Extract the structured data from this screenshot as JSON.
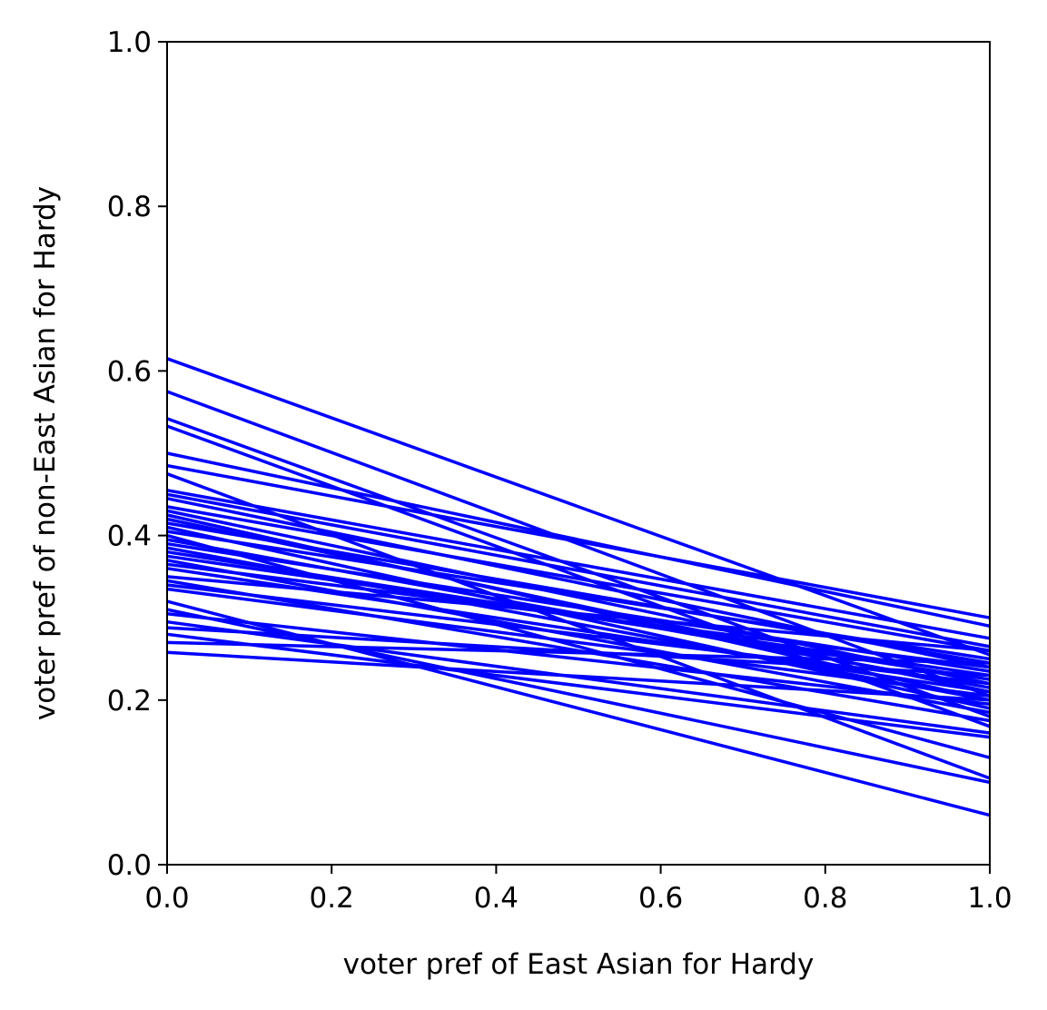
{
  "chart_data": {
    "type": "line",
    "title": "",
    "xlabel": "voter pref of East Asian for Hardy",
    "ylabel": "voter pref of non-East Asian for Hardy",
    "xlim": [
      0.0,
      1.0
    ],
    "ylim": [
      0.0,
      1.0
    ],
    "xticks": [
      "0.0",
      "0.2",
      "0.4",
      "0.6",
      "0.8",
      "1.0"
    ],
    "yticks": [
      "0.0",
      "0.2",
      "0.4",
      "0.6",
      "0.8",
      "1.0"
    ],
    "grid": false,
    "line_color": "#0000ff",
    "series": [
      {
        "x": [
          0,
          1
        ],
        "y": [
          0.615,
          0.255
        ]
      },
      {
        "x": [
          0,
          1
        ],
        "y": [
          0.575,
          0.205
        ]
      },
      {
        "x": [
          0,
          1
        ],
        "y": [
          0.542,
          0.18
        ]
      },
      {
        "x": [
          0,
          1
        ],
        "y": [
          0.533,
          0.168
        ]
      },
      {
        "x": [
          0,
          1
        ],
        "y": [
          0.5,
          0.29
        ]
      },
      {
        "x": [
          0,
          1
        ],
        "y": [
          0.485,
          0.3
        ]
      },
      {
        "x": [
          0,
          1
        ],
        "y": [
          0.475,
          0.105
        ]
      },
      {
        "x": [
          0,
          1
        ],
        "y": [
          0.455,
          0.275
        ]
      },
      {
        "x": [
          0,
          1
        ],
        "y": [
          0.45,
          0.265
        ]
      },
      {
        "x": [
          0,
          1
        ],
        "y": [
          0.445,
          0.24
        ]
      },
      {
        "x": [
          0,
          1
        ],
        "y": [
          0.435,
          0.26
        ]
      },
      {
        "x": [
          0,
          1
        ],
        "y": [
          0.43,
          0.22
        ]
      },
      {
        "x": [
          0,
          1
        ],
        "y": [
          0.425,
          0.2
        ]
      },
      {
        "x": [
          0,
          1
        ],
        "y": [
          0.42,
          0.21
        ]
      },
      {
        "x": [
          0,
          1
        ],
        "y": [
          0.415,
          0.245
        ]
      },
      {
        "x": [
          0,
          1
        ],
        "y": [
          0.41,
          0.19
        ]
      },
      {
        "x": [
          0,
          1
        ],
        "y": [
          0.405,
          0.25
        ]
      },
      {
        "x": [
          0,
          1
        ],
        "y": [
          0.4,
          0.13
        ]
      },
      {
        "x": [
          0,
          1
        ],
        "y": [
          0.395,
          0.215
        ]
      },
      {
        "x": [
          0,
          1
        ],
        "y": [
          0.39,
          0.235
        ]
      },
      {
        "x": [
          0,
          1
        ],
        "y": [
          0.385,
          0.2
        ]
      },
      {
        "x": [
          0,
          1
        ],
        "y": [
          0.38,
          0.225
        ]
      },
      {
        "x": [
          0,
          1
        ],
        "y": [
          0.375,
          0.23
        ]
      },
      {
        "x": [
          0,
          1
        ],
        "y": [
          0.37,
          0.185
        ]
      },
      {
        "x": [
          0,
          1
        ],
        "y": [
          0.365,
          0.24
        ]
      },
      {
        "x": [
          0,
          1
        ],
        "y": [
          0.36,
          0.21
        ]
      },
      {
        "x": [
          0,
          1
        ],
        "y": [
          0.35,
          0.26
        ]
      },
      {
        "x": [
          0,
          1
        ],
        "y": [
          0.345,
          0.175
        ]
      },
      {
        "x": [
          0,
          1
        ],
        "y": [
          0.34,
          0.22
        ]
      },
      {
        "x": [
          0,
          1
        ],
        "y": [
          0.335,
          0.205
        ]
      },
      {
        "x": [
          0,
          1
        ],
        "y": [
          0.32,
          0.06
        ]
      },
      {
        "x": [
          0,
          1
        ],
        "y": [
          0.31,
          0.1
        ]
      },
      {
        "x": [
          0,
          1
        ],
        "y": [
          0.305,
          0.195
        ]
      },
      {
        "x": [
          0,
          1
        ],
        "y": [
          0.295,
          0.16
        ]
      },
      {
        "x": [
          0,
          1
        ],
        "y": [
          0.288,
          0.23
        ]
      },
      {
        "x": [
          0,
          1
        ],
        "y": [
          0.28,
          0.155
        ]
      },
      {
        "x": [
          0,
          1
        ],
        "y": [
          0.27,
          0.245
        ]
      },
      {
        "x": [
          0,
          1
        ],
        "y": [
          0.258,
          0.2
        ]
      }
    ]
  }
}
